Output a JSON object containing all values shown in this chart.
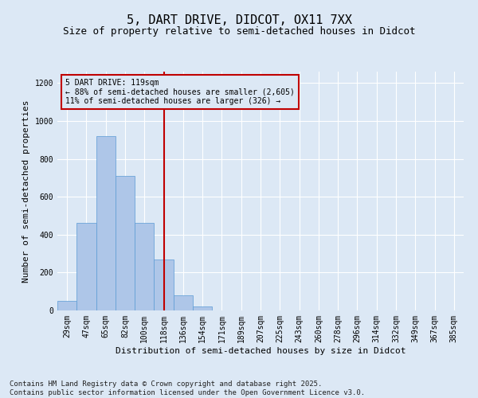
{
  "title": "5, DART DRIVE, DIDCOT, OX11 7XX",
  "subtitle": "Size of property relative to semi-detached houses in Didcot",
  "xlabel": "Distribution of semi-detached houses by size in Didcot",
  "ylabel": "Number of semi-detached properties",
  "categories": [
    "29sqm",
    "47sqm",
    "65sqm",
    "82sqm",
    "100sqm",
    "118sqm",
    "136sqm",
    "154sqm",
    "171sqm",
    "189sqm",
    "207sqm",
    "225sqm",
    "243sqm",
    "260sqm",
    "278sqm",
    "296sqm",
    "314sqm",
    "332sqm",
    "349sqm",
    "367sqm",
    "385sqm"
  ],
  "values": [
    50,
    460,
    920,
    710,
    460,
    270,
    80,
    20,
    0,
    0,
    0,
    0,
    0,
    0,
    0,
    0,
    0,
    0,
    0,
    0,
    0
  ],
  "bar_color": "#aec6e8",
  "bar_edge_color": "#5b9bd5",
  "vline_x_index": 5,
  "vline_color": "#c00000",
  "annotation_line1": "5 DART DRIVE: 119sqm",
  "annotation_line2": "← 88% of semi-detached houses are smaller (2,605)",
  "annotation_line3": "11% of semi-detached houses are larger (326) →",
  "ylim": [
    0,
    1260
  ],
  "yticks": [
    0,
    200,
    400,
    600,
    800,
    1000,
    1200
  ],
  "footnote": "Contains HM Land Registry data © Crown copyright and database right 2025.\nContains public sector information licensed under the Open Government Licence v3.0.",
  "bg_color": "#dce8f5",
  "grid_color": "#ffffff",
  "title_fontsize": 11,
  "subtitle_fontsize": 9,
  "label_fontsize": 8,
  "tick_fontsize": 7,
  "footnote_fontsize": 6.5
}
